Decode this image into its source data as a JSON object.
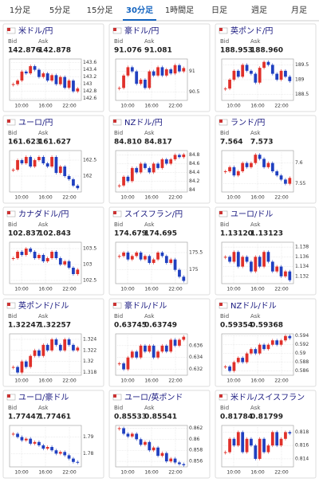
{
  "tabs": [
    "1分足",
    "5分足",
    "15分足",
    "30分足",
    "1時間足",
    "日足",
    "週足",
    "月足"
  ],
  "active_tab": 3,
  "bid_label": "Bid",
  "ask_label": "Ask",
  "time_labels": [
    "10:00",
    "16:00",
    "22:00"
  ],
  "up_color": "#e0302a",
  "down_color": "#2040c0",
  "panels": [
    {
      "name": "米ドル/円",
      "bid": "142.876",
      "ask": "142.878",
      "ylim": [
        142.55,
        143.7
      ],
      "yticks": [
        143.6,
        143.4,
        143.2,
        143,
        142.8,
        142.6
      ],
      "closes": [
        143.0,
        143.1,
        143.35,
        143.3,
        143.5,
        143.4,
        143.2,
        143.3,
        143.1,
        143.25,
        143.0,
        143.2,
        142.9,
        143.1,
        142.8,
        142.88
      ]
    },
    {
      "name": "豪ドル/円",
      "bid": "91.076",
      "ask": "91.081",
      "ylim": [
        90.3,
        91.3
      ],
      "yticks": [
        91,
        90.5
      ],
      "closes": [
        90.6,
        90.9,
        91.1,
        91.0,
        90.7,
        90.8,
        90.6,
        91.0,
        90.9,
        91.1,
        90.9,
        91.05,
        90.95,
        91.15,
        91.0,
        91.08
      ]
    },
    {
      "name": "英ポンド/円",
      "bid": "188.953",
      "ask": "188.960",
      "ylim": [
        188.3,
        189.7
      ],
      "yticks": [
        189.5,
        189,
        188.5
      ],
      "closes": [
        188.7,
        189.0,
        189.3,
        189.1,
        189.5,
        189.3,
        189.2,
        188.9,
        189.4,
        189.6,
        189.5,
        189.2,
        189.0,
        189.3,
        189.1,
        188.95
      ]
    },
    {
      "name": "ユーロ/円",
      "bid": "161.623",
      "ask": "161.627",
      "ylim": [
        161.5,
        162.8
      ],
      "yticks": [
        162.5,
        162
      ],
      "closes": [
        162.2,
        162.5,
        162.4,
        162.6,
        162.3,
        162.5,
        162.6,
        162.4,
        162.3,
        162.6,
        162.1,
        162.3,
        162.0,
        161.9,
        161.7,
        161.62
      ]
    },
    {
      "name": "NZドル/円",
      "bid": "84.810",
      "ask": "84.817",
      "ylim": [
        83.95,
        84.9
      ],
      "yticks": [
        84.8,
        84.6,
        84.4,
        84.2,
        84
      ],
      "closes": [
        84.1,
        84.3,
        84.2,
        84.5,
        84.4,
        84.6,
        84.5,
        84.4,
        84.6,
        84.5,
        84.7,
        84.6,
        84.7,
        84.8,
        84.75,
        84.81
      ]
    },
    {
      "name": "ランド/円",
      "bid": "7.564",
      "ask": "7.573",
      "ylim": [
        7.53,
        7.63
      ],
      "yticks": [
        7.6,
        7.55
      ],
      "closes": [
        7.58,
        7.59,
        7.57,
        7.58,
        7.6,
        7.59,
        7.6,
        7.62,
        7.61,
        7.59,
        7.6,
        7.58,
        7.57,
        7.56,
        7.55,
        7.564
      ]
    },
    {
      "name": "カナダドル/円",
      "bid": "102.837",
      "ask": "102.843",
      "ylim": [
        102.4,
        103.7
      ],
      "yticks": [
        103.5,
        103,
        102.5
      ],
      "closes": [
        103.2,
        103.4,
        103.3,
        103.5,
        103.4,
        103.2,
        103.3,
        103.1,
        103.2,
        103.4,
        103.2,
        103.0,
        103.1,
        102.9,
        102.7,
        102.84
      ]
    },
    {
      "name": "スイスフラン/円",
      "bid": "174.679",
      "ask": "174.695",
      "ylim": [
        174.6,
        175.8
      ],
      "yticks": [
        175.5,
        175
      ],
      "closes": [
        175.4,
        175.5,
        175.3,
        175.4,
        175.5,
        175.3,
        175.4,
        175.2,
        175.3,
        175.5,
        175.4,
        175.2,
        175.3,
        175.0,
        174.8,
        174.68
      ]
    },
    {
      "name": "ユーロ/ドル",
      "bid": "1.13120",
      "ask": "1.13123",
      "ylim": [
        1.1305,
        1.139
      ],
      "yticks": [
        1.138,
        1.136,
        1.134,
        1.132
      ],
      "closes": [
        1.136,
        1.135,
        1.137,
        1.134,
        1.136,
        1.135,
        1.133,
        1.136,
        1.134,
        1.137,
        1.135,
        1.133,
        1.134,
        1.132,
        1.133,
        1.1312
      ]
    },
    {
      "name": "英ポンド/ドル",
      "bid": "1.32247",
      "ask": "1.32257",
      "ylim": [
        1.3175,
        1.325
      ],
      "yticks": [
        1.324,
        1.322,
        1.32,
        1.318
      ],
      "closes": [
        1.319,
        1.318,
        1.32,
        1.319,
        1.321,
        1.322,
        1.321,
        1.323,
        1.322,
        1.324,
        1.323,
        1.322,
        1.324,
        1.323,
        1.322,
        1.3225
      ]
    },
    {
      "name": "豪ドル/ドル",
      "bid": "0.63745",
      "ask": "0.63749",
      "ylim": [
        0.631,
        0.638
      ],
      "yticks": [
        0.636,
        0.634,
        0.632
      ],
      "closes": [
        0.633,
        0.632,
        0.634,
        0.635,
        0.634,
        0.636,
        0.635,
        0.636,
        0.634,
        0.635,
        0.636,
        0.635,
        0.637,
        0.636,
        0.637,
        0.6375
      ]
    },
    {
      "name": "NZドル/ドル",
      "bid": "0.59354",
      "ask": "0.59368",
      "ylim": [
        0.585,
        0.5945
      ],
      "yticks": [
        0.594,
        0.592,
        0.59,
        0.588,
        0.586
      ],
      "closes": [
        0.587,
        0.586,
        0.588,
        0.589,
        0.588,
        0.59,
        0.591,
        0.59,
        0.592,
        0.591,
        0.592,
        0.593,
        0.592,
        0.593,
        0.594,
        0.5935
      ]
    },
    {
      "name": "ユーロ/豪ドル",
      "bid": "1.77447",
      "ask": "1.77461",
      "ylim": [
        1.772,
        1.797
      ],
      "yticks": [
        1.79,
        1.78
      ],
      "closes": [
        1.792,
        1.79,
        1.788,
        1.789,
        1.786,
        1.787,
        1.785,
        1.783,
        1.784,
        1.782,
        1.78,
        1.781,
        1.779,
        1.777,
        1.775,
        1.7745
      ]
    },
    {
      "name": "ユーロ/英ポンド",
      "bid": "0.85533",
      "ask": "0.85541",
      "ylim": [
        0.855,
        0.8625
      ],
      "yticks": [
        0.862,
        0.86,
        0.858,
        0.856
      ],
      "closes": [
        0.862,
        0.861,
        0.8605,
        0.861,
        0.86,
        0.859,
        0.8595,
        0.858,
        0.8585,
        0.857,
        0.8575,
        0.856,
        0.8565,
        0.8558,
        0.8555,
        0.8553
      ]
    },
    {
      "name": "米ドル/スイスフラン",
      "bid": "0.81784",
      "ask": "0.81799",
      "ylim": [
        0.8128,
        0.819
      ],
      "yticks": [
        0.818,
        0.816,
        0.814
      ],
      "closes": [
        0.815,
        0.817,
        0.816,
        0.818,
        0.815,
        0.817,
        0.816,
        0.814,
        0.817,
        0.815,
        0.816,
        0.818,
        0.816,
        0.817,
        0.818,
        0.8178
      ]
    }
  ]
}
